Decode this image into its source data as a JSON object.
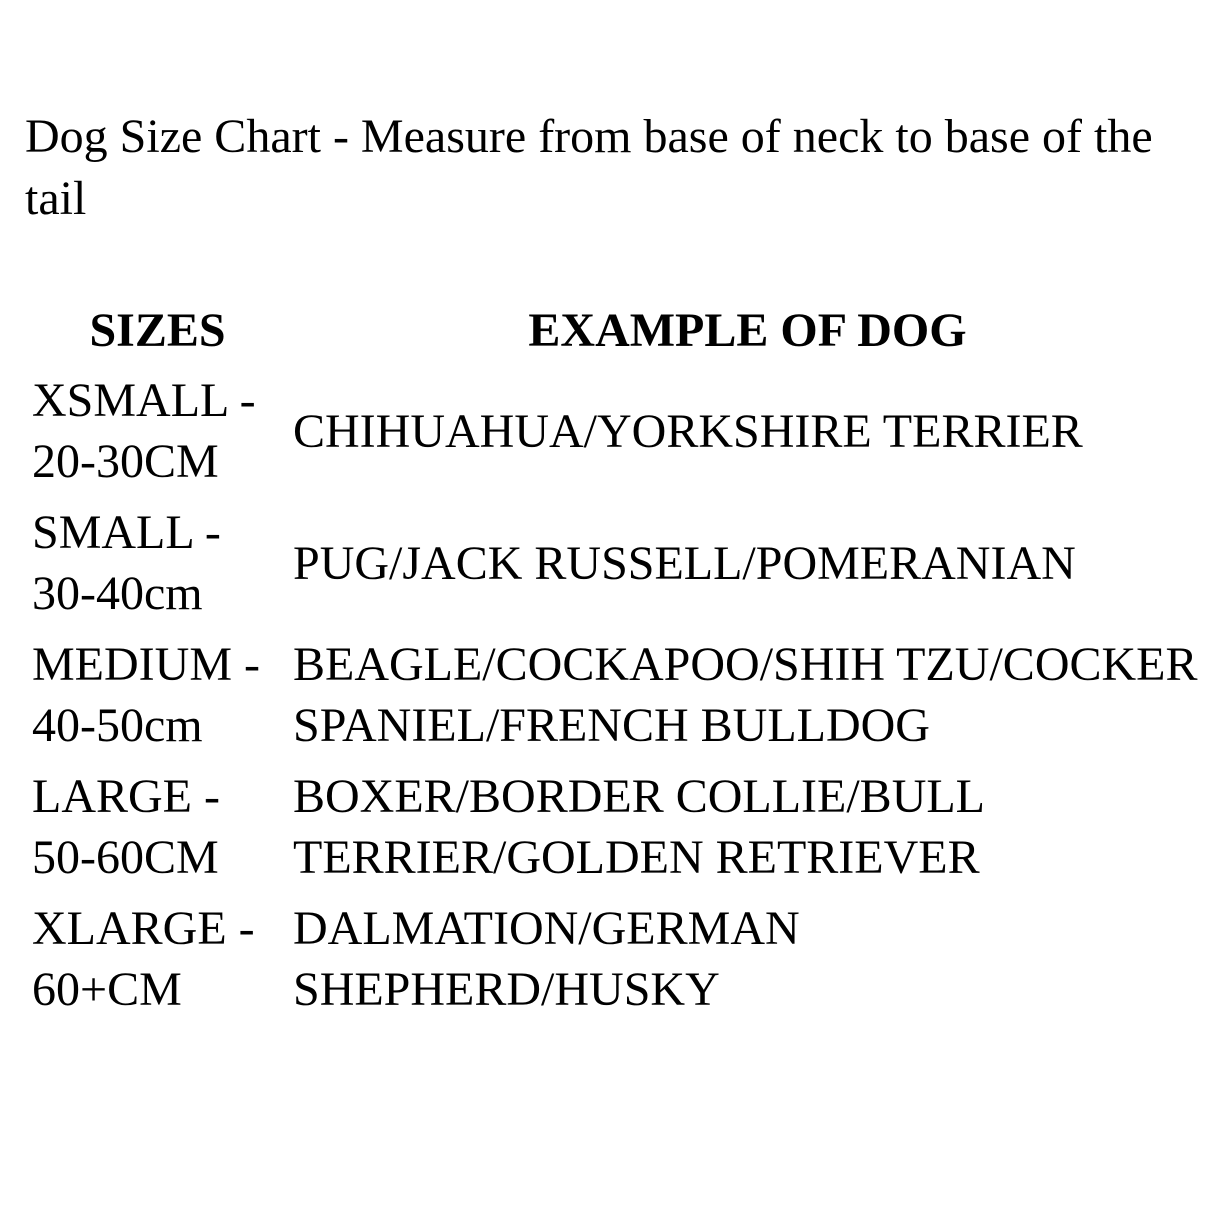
{
  "title": "Dog Size Chart - Measure from base of neck to base of the\ntail",
  "table": {
    "headers": {
      "sizes": "SIZES",
      "example": "EXAMPLE OF DOG"
    },
    "rows": [
      {
        "size": "XSMALL -\n20-30CM",
        "dogs": "CHIHUAHUA/YORKSHIRE TERRIER"
      },
      {
        "size": "SMALL -\n30-40cm",
        "dogs": "PUG/JACK RUSSELL/POMERANIAN"
      },
      {
        "size": "MEDIUM -\n40-50cm",
        "dogs": "BEAGLE/COCKAPOO/SHIH TZU/COCKER\nSPANIEL/FRENCH BULLDOG"
      },
      {
        "size": "LARGE -\n50-60CM",
        "dogs": "BOXER/BORDER COLLIE/BULL\nTERRIER/GOLDEN RETRIEVER"
      },
      {
        "size": "XLARGE -\n60+CM",
        "dogs": "DALMATION/GERMAN\nSHEPHERD/HUSKY"
      }
    ]
  },
  "colors": {
    "text": "#000000",
    "background": "#ffffff"
  }
}
